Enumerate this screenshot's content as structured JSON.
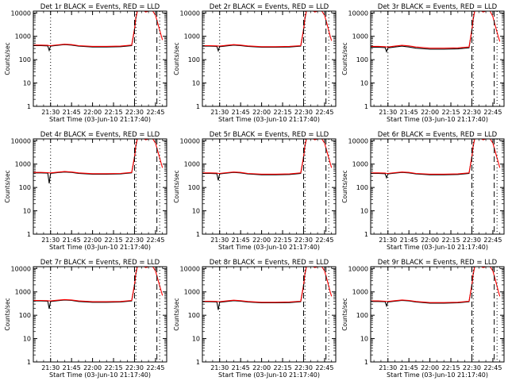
{
  "colors": {
    "events": "#000000",
    "lld": "#ff0000",
    "axis": "#000000",
    "background": "#ffffff"
  },
  "common": {
    "ylabel": "Counts/sec",
    "xlabel": "Start Time (03-Jun-10 21:17:40)",
    "x_ticks": [
      "21:30",
      "21:45",
      "22:00",
      "22:15",
      "22:30",
      "22:45"
    ],
    "y_ticks": [
      "1",
      "10",
      "100",
      "1000",
      "10000"
    ],
    "y_scale": "log",
    "ylim": [
      1,
      12000
    ],
    "xlim": [
      "21:17:40",
      "22:53"
    ]
  },
  "chart_data": [
    {
      "type": "line",
      "title": "Det 1r BLACK = Events, RED = LLD",
      "series": [
        {
          "name": "Events",
          "color": "#000000",
          "x": [
            "21:17:40",
            "21:23",
            "21:28",
            "21:29",
            "21:30",
            "21:35",
            "21:40",
            "21:45",
            "21:50",
            "22:00",
            "22:10",
            "22:20",
            "22:28",
            "22:30",
            "22:31",
            "22:32"
          ],
          "y": [
            400,
            400,
            390,
            250,
            380,
            410,
            440,
            420,
            380,
            350,
            350,
            360,
            400,
            2000,
            6000,
            12000
          ]
        },
        {
          "name": "LLD",
          "color": "#ff0000",
          "x": [
            "21:17:40",
            "21:23",
            "21:28",
            "21:29",
            "21:30",
            "21:35",
            "21:40",
            "21:45",
            "21:50",
            "22:00",
            "22:10",
            "22:20",
            "22:28",
            "22:30",
            "22:31",
            "22:32",
            "22:34",
            "22:37",
            "22:38",
            "22:40",
            "22:43",
            "22:45",
            "22:47",
            "22:49",
            "22:50"
          ],
          "y": [
            420,
            420,
            410,
            400,
            400,
            430,
            460,
            440,
            400,
            370,
            370,
            380,
            420,
            2100,
            6500,
            12000,
            12000,
            12000,
            11000,
            12000,
            12000,
            8000,
            3000,
            1100,
            700
          ]
        }
      ]
    },
    {
      "type": "line",
      "title": "Det 2r BLACK = Events, RED = LLD",
      "series": [
        {
          "name": "Events",
          "color": "#000000",
          "x": [
            "21:17:40",
            "21:23",
            "21:28",
            "21:29",
            "21:30",
            "21:35",
            "21:40",
            "21:45",
            "21:50",
            "22:00",
            "22:10",
            "22:20",
            "22:28",
            "22:30",
            "22:31",
            "22:32"
          ],
          "y": [
            380,
            380,
            370,
            240,
            360,
            390,
            420,
            400,
            370,
            340,
            340,
            350,
            380,
            1900,
            5800,
            12000
          ]
        },
        {
          "name": "LLD",
          "color": "#ff0000",
          "x": [
            "21:17:40",
            "21:23",
            "21:28",
            "21:29",
            "21:30",
            "21:35",
            "21:40",
            "21:45",
            "21:50",
            "22:00",
            "22:10",
            "22:20",
            "22:28",
            "22:30",
            "22:31",
            "22:32",
            "22:34",
            "22:37",
            "22:38",
            "22:40",
            "22:43",
            "22:45",
            "22:47",
            "22:49",
            "22:50"
          ],
          "y": [
            400,
            400,
            390,
            380,
            380,
            410,
            440,
            420,
            390,
            360,
            360,
            370,
            400,
            2000,
            6200,
            12000,
            12000,
            12000,
            11000,
            12000,
            12000,
            8000,
            3000,
            1000,
            650
          ]
        }
      ]
    },
    {
      "type": "line",
      "title": "Det 3r BLACK = Events, RED = LLD",
      "series": [
        {
          "name": "Events",
          "color": "#000000",
          "x": [
            "21:17:40",
            "21:23",
            "21:28",
            "21:29",
            "21:30",
            "21:35",
            "21:40",
            "21:45",
            "21:50",
            "22:00",
            "22:10",
            "22:20",
            "22:28",
            "22:30",
            "22:31",
            "22:32"
          ],
          "y": [
            340,
            340,
            330,
            220,
            320,
            350,
            380,
            350,
            310,
            280,
            280,
            290,
            320,
            1800,
            5500,
            12000
          ]
        },
        {
          "name": "LLD",
          "color": "#ff0000",
          "x": [
            "21:17:40",
            "21:23",
            "21:28",
            "21:29",
            "21:30",
            "21:35",
            "21:40",
            "21:45",
            "21:50",
            "22:00",
            "22:10",
            "22:20",
            "22:28",
            "22:30",
            "22:31",
            "22:32",
            "22:34",
            "22:37",
            "22:38",
            "22:40",
            "22:43",
            "22:45",
            "22:47",
            "22:49",
            "22:50"
          ],
          "y": [
            370,
            370,
            360,
            350,
            350,
            380,
            410,
            390,
            350,
            310,
            310,
            320,
            350,
            1900,
            6000,
            12000,
            12000,
            12000,
            11000,
            12000,
            12000,
            7000,
            2500,
            900,
            600
          ]
        }
      ]
    },
    {
      "type": "line",
      "title": "Det 4r BLACK = Events, RED = LLD",
      "series": [
        {
          "name": "Events",
          "color": "#000000",
          "x": [
            "21:17:40",
            "21:23",
            "21:28",
            "21:29",
            "21:30",
            "21:35",
            "21:40",
            "21:45",
            "21:50",
            "22:00",
            "22:10",
            "22:20",
            "22:28",
            "22:30",
            "22:31",
            "22:32"
          ],
          "y": [
            420,
            420,
            410,
            150,
            400,
            430,
            460,
            440,
            400,
            370,
            370,
            380,
            420,
            2000,
            6000,
            12000
          ]
        },
        {
          "name": "LLD",
          "color": "#ff0000",
          "x": [
            "21:17:40",
            "21:23",
            "21:28",
            "21:29",
            "21:30",
            "21:35",
            "21:40",
            "21:45",
            "21:50",
            "22:00",
            "22:10",
            "22:20",
            "22:28",
            "22:30",
            "22:31",
            "22:32",
            "22:34",
            "22:37",
            "22:38",
            "22:40",
            "22:43",
            "22:45",
            "22:47",
            "22:49",
            "22:50"
          ],
          "y": [
            440,
            440,
            430,
            420,
            420,
            450,
            480,
            460,
            420,
            390,
            390,
            400,
            440,
            2100,
            6500,
            12000,
            12000,
            12000,
            11000,
            12000,
            12000,
            8000,
            3000,
            1100,
            700
          ]
        }
      ]
    },
    {
      "type": "line",
      "title": "Det 5r BLACK = Events, RED = LLD",
      "series": [
        {
          "name": "Events",
          "color": "#000000",
          "x": [
            "21:17:40",
            "21:23",
            "21:28",
            "21:29",
            "21:30",
            "21:35",
            "21:40",
            "21:45",
            "21:50",
            "22:00",
            "22:10",
            "22:20",
            "22:28",
            "22:30",
            "22:31",
            "22:32"
          ],
          "y": [
            400,
            400,
            390,
            200,
            380,
            410,
            440,
            420,
            380,
            350,
            350,
            360,
            400,
            2000,
            6000,
            12000
          ]
        },
        {
          "name": "LLD",
          "color": "#ff0000",
          "x": [
            "21:17:40",
            "21:23",
            "21:28",
            "21:29",
            "21:30",
            "21:35",
            "21:40",
            "21:45",
            "21:50",
            "22:00",
            "22:10",
            "22:20",
            "22:28",
            "22:30",
            "22:31",
            "22:32",
            "22:34",
            "22:37",
            "22:38",
            "22:40",
            "22:43",
            "22:45",
            "22:47",
            "22:49",
            "22:50"
          ],
          "y": [
            420,
            420,
            410,
            400,
            400,
            430,
            460,
            440,
            400,
            370,
            370,
            380,
            420,
            2100,
            6500,
            12000,
            12000,
            12000,
            11000,
            12000,
            12000,
            8000,
            3000,
            1100,
            700
          ]
        }
      ]
    },
    {
      "type": "line",
      "title": "Det 6r BLACK = Events, RED = LLD",
      "series": [
        {
          "name": "Events",
          "color": "#000000",
          "x": [
            "21:17:40",
            "21:23",
            "21:28",
            "21:29",
            "21:30",
            "21:35",
            "21:40",
            "21:45",
            "21:50",
            "22:00",
            "22:10",
            "22:20",
            "22:28",
            "22:30",
            "22:31",
            "22:32"
          ],
          "y": [
            400,
            400,
            390,
            260,
            380,
            410,
            440,
            420,
            380,
            350,
            350,
            360,
            400,
            2000,
            6000,
            12000
          ]
        },
        {
          "name": "LLD",
          "color": "#ff0000",
          "x": [
            "21:17:40",
            "21:23",
            "21:28",
            "21:29",
            "21:30",
            "21:35",
            "21:40",
            "21:45",
            "21:50",
            "22:00",
            "22:10",
            "22:20",
            "22:28",
            "22:30",
            "22:31",
            "22:32",
            "22:34",
            "22:37",
            "22:38",
            "22:40",
            "22:43",
            "22:45",
            "22:47",
            "22:49",
            "22:50"
          ],
          "y": [
            420,
            420,
            410,
            400,
            400,
            430,
            460,
            440,
            400,
            370,
            370,
            380,
            420,
            2100,
            6500,
            12000,
            12000,
            12000,
            11000,
            12000,
            12000,
            8000,
            3000,
            1100,
            700
          ]
        }
      ]
    },
    {
      "type": "line",
      "title": "Det 7r BLACK = Events, RED = LLD",
      "series": [
        {
          "name": "Events",
          "color": "#000000",
          "x": [
            "21:17:40",
            "21:23",
            "21:28",
            "21:29",
            "21:30",
            "21:35",
            "21:40",
            "21:45",
            "21:50",
            "22:00",
            "22:10",
            "22:20",
            "22:28",
            "22:30",
            "22:31",
            "22:32"
          ],
          "y": [
            410,
            410,
            400,
            190,
            390,
            420,
            450,
            430,
            390,
            360,
            360,
            370,
            410,
            2000,
            6000,
            12000
          ]
        },
        {
          "name": "LLD",
          "color": "#ff0000",
          "x": [
            "21:17:40",
            "21:23",
            "21:28",
            "21:29",
            "21:30",
            "21:35",
            "21:40",
            "21:45",
            "21:50",
            "22:00",
            "22:10",
            "22:20",
            "22:28",
            "22:30",
            "22:31",
            "22:32",
            "22:34",
            "22:37",
            "22:38",
            "22:40",
            "22:43",
            "22:45",
            "22:47",
            "22:49",
            "22:50"
          ],
          "y": [
            430,
            430,
            420,
            410,
            410,
            440,
            470,
            450,
            410,
            380,
            380,
            390,
            430,
            2100,
            6500,
            12000,
            12000,
            12000,
            11000,
            12000,
            12000,
            8000,
            3000,
            1100,
            700
          ]
        }
      ]
    },
    {
      "type": "line",
      "title": "Det 8r BLACK = Events, RED = LLD",
      "series": [
        {
          "name": "Events",
          "color": "#000000",
          "x": [
            "21:17:40",
            "21:23",
            "21:28",
            "21:29",
            "21:30",
            "21:35",
            "21:40",
            "21:45",
            "21:50",
            "22:00",
            "22:10",
            "22:20",
            "22:28",
            "22:30",
            "22:31",
            "22:32"
          ],
          "y": [
            380,
            380,
            370,
            170,
            360,
            390,
            420,
            400,
            370,
            340,
            340,
            350,
            380,
            1900,
            5800,
            12000
          ]
        },
        {
          "name": "LLD",
          "color": "#ff0000",
          "x": [
            "21:17:40",
            "21:23",
            "21:28",
            "21:29",
            "21:30",
            "21:35",
            "21:40",
            "21:45",
            "21:50",
            "22:00",
            "22:10",
            "22:20",
            "22:28",
            "22:30",
            "22:31",
            "22:32",
            "22:34",
            "22:37",
            "22:38",
            "22:40",
            "22:43",
            "22:45",
            "22:47",
            "22:49",
            "22:50"
          ],
          "y": [
            400,
            400,
            390,
            380,
            380,
            410,
            440,
            420,
            390,
            360,
            360,
            370,
            400,
            2000,
            6200,
            12000,
            12000,
            12000,
            11000,
            12000,
            12000,
            8000,
            3000,
            1000,
            650
          ]
        }
      ]
    },
    {
      "type": "line",
      "title": "Det 9r BLACK = Events, RED = LLD",
      "series": [
        {
          "name": "Events",
          "color": "#000000",
          "x": [
            "21:17:40",
            "21:23",
            "21:28",
            "21:29",
            "21:30",
            "21:35",
            "21:40",
            "21:45",
            "21:50",
            "22:00",
            "22:10",
            "22:20",
            "22:28",
            "22:30",
            "22:31",
            "22:32"
          ],
          "y": [
            390,
            390,
            380,
            250,
            370,
            400,
            430,
            410,
            370,
            330,
            330,
            340,
            380,
            1900,
            5800,
            12000
          ]
        },
        {
          "name": "LLD",
          "color": "#ff0000",
          "x": [
            "21:17:40",
            "21:23",
            "21:28",
            "21:29",
            "21:30",
            "21:35",
            "21:40",
            "21:45",
            "21:50",
            "22:00",
            "22:10",
            "22:20",
            "22:28",
            "22:30",
            "22:31",
            "22:32",
            "22:34",
            "22:37",
            "22:38",
            "22:40",
            "22:43",
            "22:45",
            "22:47",
            "22:49",
            "22:50"
          ],
          "y": [
            410,
            410,
            400,
            390,
            390,
            420,
            450,
            430,
            390,
            350,
            350,
            360,
            400,
            2000,
            6200,
            12000,
            12000,
            12000,
            11000,
            12000,
            12000,
            8000,
            3000,
            1000,
            650
          ]
        }
      ]
    }
  ],
  "markers": [
    {
      "style": "dotted",
      "time": "21:30"
    },
    {
      "style": "dashed",
      "time": "22:30"
    },
    {
      "style": "dotted",
      "time": "22:31"
    },
    {
      "style": "dashed",
      "time": "22:46"
    },
    {
      "style": "dotted",
      "time": "22:48"
    }
  ]
}
